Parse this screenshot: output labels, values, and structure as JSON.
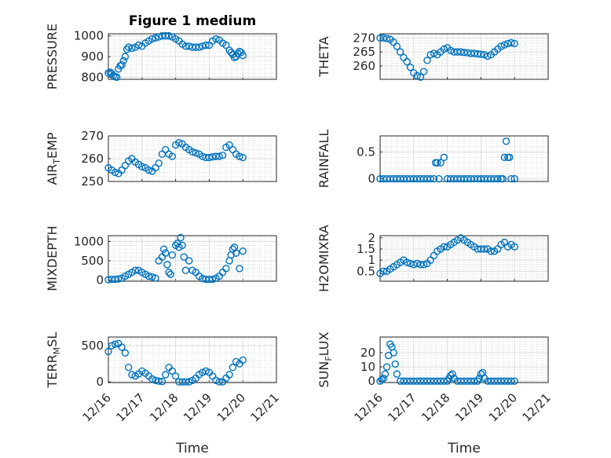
{
  "figure": {
    "title": "Figure 1 medium",
    "marker_color": "#0072BD"
  },
  "chart_data": [
    {
      "type": "scatter",
      "title": "Figure 1 medium",
      "ylabel": "PRESSURE",
      "xlabel": "",
      "xlim": [
        "12/16",
        "12/21"
      ],
      "xticks": [
        "12/16",
        "12/17",
        "12/18",
        "12/19",
        "12/20",
        "12/21"
      ],
      "ylim": [
        790,
        1010
      ],
      "yticks": [
        800,
        900,
        1000
      ],
      "series": [
        {
          "x": [
            0.0,
            0.05,
            0.1,
            0.15,
            0.2,
            0.25,
            0.3,
            0.35,
            0.4,
            0.45,
            0.5,
            0.55,
            0.6,
            0.7,
            0.8,
            0.9,
            1.0,
            1.1,
            1.2,
            1.3,
            1.4,
            1.5,
            1.6,
            1.7,
            1.8,
            1.9,
            2.0,
            2.1,
            2.2,
            2.3,
            2.4,
            2.5,
            2.6,
            2.7,
            2.8,
            2.9,
            3.0,
            3.1,
            3.2,
            3.3,
            3.4,
            3.5,
            3.6,
            3.65,
            3.7,
            3.75,
            3.8,
            3.85,
            3.9,
            3.95,
            4.0
          ],
          "y": [
            820,
            825,
            818,
            808,
            802,
            800,
            840,
            855,
            860,
            880,
            900,
            935,
            945,
            940,
            945,
            955,
            950,
            965,
            975,
            985,
            990,
            995,
            1000,
            1000,
            1000,
            995,
            985,
            975,
            960,
            950,
            950,
            945,
            945,
            945,
            950,
            955,
            955,
            975,
            985,
            980,
            965,
            955,
            930,
            920,
            910,
            895,
            900,
            915,
            925,
            920,
            905
          ]
        }
      ]
    },
    {
      "type": "scatter",
      "ylabel": "THETA",
      "xlabel": "",
      "xlim": [
        "12/16",
        "12/21"
      ],
      "xticks": [
        "12/16",
        "12/17",
        "12/18",
        "12/19",
        "12/20",
        "12/21"
      ],
      "ylim": [
        255.2,
        271.5
      ],
      "yticks": [
        260,
        265,
        270
      ],
      "series": [
        {
          "x": [
            0.0,
            0.1,
            0.2,
            0.3,
            0.4,
            0.5,
            0.6,
            0.7,
            0.8,
            0.9,
            1.0,
            1.1,
            1.2,
            1.3,
            1.4,
            1.5,
            1.6,
            1.7,
            1.8,
            1.9,
            2.0,
            2.1,
            2.2,
            2.3,
            2.4,
            2.5,
            2.6,
            2.7,
            2.8,
            2.9,
            3.0,
            3.1,
            3.2,
            3.3,
            3.4,
            3.5,
            3.6,
            3.7,
            3.8,
            3.9,
            4.0
          ],
          "y": [
            270,
            270,
            269.8,
            269.5,
            268.5,
            267,
            265,
            263,
            261.5,
            259.5,
            257.5,
            256.5,
            256,
            258,
            262,
            264,
            264.5,
            264,
            265,
            266,
            266.5,
            265.5,
            265,
            265,
            265,
            264.8,
            264.7,
            264.5,
            264.5,
            264.3,
            264.2,
            264,
            263.5,
            264,
            265,
            266,
            267,
            267.5,
            268,
            268.3,
            268
          ]
        }
      ]
    },
    {
      "type": "scatter",
      "ylabel": "AIR_TEMP",
      "xlabel": "",
      "xlim": [
        "12/16",
        "12/21"
      ],
      "xticks": [
        "12/16",
        "12/17",
        "12/18",
        "12/19",
        "12/20",
        "12/21"
      ],
      "ylim": [
        250,
        270
      ],
      "yticks": [
        250,
        260,
        270
      ],
      "series": [
        {
          "x": [
            0.0,
            0.1,
            0.2,
            0.3,
            0.4,
            0.5,
            0.6,
            0.7,
            0.8,
            0.9,
            1.0,
            1.1,
            1.2,
            1.3,
            1.4,
            1.5,
            1.6,
            1.7,
            1.8,
            1.9,
            2.0,
            2.1,
            2.2,
            2.3,
            2.4,
            2.5,
            2.6,
            2.7,
            2.8,
            2.9,
            3.0,
            3.1,
            3.2,
            3.3,
            3.4,
            3.5,
            3.6,
            3.7,
            3.8,
            3.9,
            4.0
          ],
          "y": [
            256,
            255,
            254,
            253.5,
            255,
            257,
            259,
            260,
            258.5,
            257.5,
            256.5,
            256,
            255,
            254.5,
            256,
            258,
            262,
            264,
            262,
            261,
            266,
            267,
            266.5,
            265,
            264,
            263,
            262.5,
            262,
            261,
            260.5,
            260.5,
            260.8,
            261,
            261,
            261.5,
            265,
            266,
            264,
            262,
            261,
            260.5
          ]
        }
      ]
    },
    {
      "type": "scatter",
      "ylabel": "RAINFALL",
      "xlabel": "",
      "xlim": [
        "12/16",
        "12/21"
      ],
      "xticks": [
        "12/16",
        "12/17",
        "12/18",
        "12/19",
        "12/20",
        "12/21"
      ],
      "ylim": [
        -0.05,
        0.8
      ],
      "yticks": [
        0,
        0.5
      ],
      "series": [
        {
          "x": [
            0.0,
            0.1,
            0.2,
            0.3,
            0.4,
            0.5,
            0.6,
            0.7,
            0.8,
            0.9,
            1.0,
            1.1,
            1.2,
            1.3,
            1.4,
            1.5,
            1.6,
            1.65,
            1.7,
            1.75,
            1.8,
            1.9,
            2.0,
            2.1,
            2.2,
            2.3,
            2.4,
            2.5,
            2.6,
            2.7,
            2.8,
            2.9,
            3.0,
            3.1,
            3.2,
            3.3,
            3.4,
            3.5,
            3.6,
            3.65,
            3.7,
            3.75,
            3.8,
            3.85,
            3.9,
            4.0
          ],
          "y": [
            0,
            0,
            0,
            0,
            0,
            0,
            0,
            0,
            0,
            0,
            0,
            0,
            0,
            0,
            0,
            0,
            0,
            0.3,
            0.3,
            0,
            0.3,
            0.4,
            0,
            0,
            0,
            0,
            0,
            0,
            0,
            0,
            0,
            0,
            0,
            0,
            0,
            0,
            0,
            0,
            0,
            0,
            0.4,
            0.7,
            0.4,
            0.4,
            0,
            0
          ]
        }
      ]
    },
    {
      "type": "scatter",
      "ylabel": "MIXDEPTH",
      "xlabel": "",
      "xlim": [
        "12/16",
        "12/21"
      ],
      "xticks": [
        "12/16",
        "12/17",
        "12/18",
        "12/19",
        "12/20",
        "12/21"
      ],
      "ylim": [
        -30,
        1150
      ],
      "yticks": [
        0,
        500,
        1000
      ],
      "series": [
        {
          "x": [
            0.0,
            0.1,
            0.2,
            0.3,
            0.4,
            0.5,
            0.6,
            0.7,
            0.8,
            0.9,
            1.0,
            1.1,
            1.2,
            1.3,
            1.4,
            1.5,
            1.6,
            1.65,
            1.7,
            1.75,
            1.8,
            1.85,
            1.9,
            2.0,
            2.05,
            2.1,
            2.15,
            2.2,
            2.25,
            2.3,
            2.4,
            2.5,
            2.6,
            2.7,
            2.8,
            2.9,
            3.0,
            3.1,
            3.2,
            3.3,
            3.4,
            3.5,
            3.6,
            3.65,
            3.7,
            3.75,
            3.8,
            3.9,
            4.0
          ],
          "y": [
            10,
            20,
            20,
            30,
            50,
            100,
            150,
            200,
            250,
            250,
            200,
            150,
            100,
            80,
            50,
            500,
            600,
            800,
            700,
            400,
            200,
            150,
            650,
            900,
            950,
            850,
            1100,
            900,
            600,
            250,
            500,
            250,
            200,
            100,
            40,
            20,
            20,
            20,
            50,
            100,
            200,
            300,
            500,
            650,
            800,
            850,
            700,
            300,
            750
          ]
        }
      ]
    },
    {
      "type": "scatter",
      "ylabel": "H2OMIXRA",
      "xlabel": "",
      "xlim": [
        "12/16",
        "12/21"
      ],
      "xticks": [
        "12/16",
        "12/17",
        "12/18",
        "12/19",
        "12/20",
        "12/21"
      ],
      "ylim": [
        0.05,
        2.1
      ],
      "yticks": [
        0.5,
        1,
        1.5,
        2
      ],
      "series": [
        {
          "x": [
            0.0,
            0.1,
            0.2,
            0.3,
            0.4,
            0.5,
            0.6,
            0.7,
            0.8,
            0.9,
            1.0,
            1.1,
            1.2,
            1.3,
            1.4,
            1.5,
            1.6,
            1.7,
            1.8,
            1.9,
            2.0,
            2.1,
            2.2,
            2.3,
            2.4,
            2.5,
            2.6,
            2.7,
            2.8,
            2.9,
            3.0,
            3.1,
            3.2,
            3.3,
            3.4,
            3.5,
            3.6,
            3.7,
            3.8,
            3.9,
            4.0
          ],
          "y": [
            0.4,
            0.5,
            0.5,
            0.6,
            0.7,
            0.8,
            0.9,
            1.0,
            0.9,
            0.85,
            0.8,
            0.85,
            0.8,
            0.8,
            0.85,
            1.0,
            1.2,
            1.4,
            1.5,
            1.6,
            1.6,
            1.7,
            1.8,
            1.9,
            2.0,
            1.9,
            1.8,
            1.7,
            1.6,
            1.5,
            1.5,
            1.5,
            1.5,
            1.4,
            1.4,
            1.5,
            1.7,
            1.8,
            1.6,
            1.7,
            1.6
          ]
        }
      ]
    },
    {
      "type": "scatter",
      "ylabel": "TERR_MSL",
      "xlabel": "Time",
      "xlim": [
        "12/16",
        "12/21"
      ],
      "xticks": [
        "12/16",
        "12/17",
        "12/18",
        "12/19",
        "12/20",
        "12/21"
      ],
      "ylim": [
        -10,
        620
      ],
      "yticks": [
        0,
        500
      ],
      "series": [
        {
          "x": [
            0.0,
            0.1,
            0.2,
            0.3,
            0.4,
            0.5,
            0.6,
            0.7,
            0.8,
            0.9,
            1.0,
            1.1,
            1.2,
            1.3,
            1.4,
            1.5,
            1.6,
            1.7,
            1.8,
            1.9,
            2.0,
            2.1,
            2.2,
            2.3,
            2.4,
            2.5,
            2.6,
            2.7,
            2.8,
            2.9,
            3.0,
            3.1,
            3.2,
            3.3,
            3.4,
            3.5,
            3.6,
            3.7,
            3.8,
            3.9,
            4.0
          ],
          "y": [
            420,
            500,
            520,
            530,
            480,
            400,
            200,
            100,
            80,
            110,
            150,
            120,
            80,
            40,
            20,
            10,
            5,
            100,
            200,
            150,
            80,
            0,
            0,
            0,
            0,
            20,
            50,
            100,
            130,
            150,
            130,
            80,
            20,
            0,
            0,
            50,
            100,
            200,
            280,
            250,
            300
          ]
        }
      ]
    },
    {
      "type": "scatter",
      "ylabel": "SUN_FLUX",
      "xlabel": "Time",
      "xlim": [
        "12/16",
        "12/21"
      ],
      "xticks": [
        "12/16",
        "12/17",
        "12/18",
        "12/19",
        "12/20",
        "12/21"
      ],
      "ylim": [
        -1,
        31
      ],
      "yticks": [
        0,
        10,
        20
      ],
      "series": [
        {
          "x": [
            0.0,
            0.05,
            0.1,
            0.15,
            0.2,
            0.25,
            0.3,
            0.35,
            0.4,
            0.45,
            0.5,
            0.6,
            0.7,
            0.8,
            0.9,
            1.0,
            1.1,
            1.2,
            1.3,
            1.4,
            1.5,
            1.6,
            1.7,
            1.8,
            1.9,
            2.0,
            2.05,
            2.1,
            2.15,
            2.2,
            2.3,
            2.4,
            2.5,
            2.6,
            2.7,
            2.8,
            2.9,
            2.95,
            3.0,
            3.05,
            3.1,
            3.2,
            3.3,
            3.4,
            3.5,
            3.6,
            3.7,
            3.8,
            3.9,
            4.0
          ],
          "y": [
            0,
            1,
            2,
            5,
            10,
            18,
            26,
            24,
            20,
            12,
            5,
            0,
            0,
            0,
            0,
            0,
            0,
            0,
            0,
            0,
            0,
            0,
            0,
            0,
            0,
            0,
            2,
            4,
            5,
            2,
            0,
            0,
            0,
            0,
            0,
            0,
            0,
            2,
            5,
            6,
            2,
            0,
            0,
            0,
            0,
            0,
            0,
            0,
            0,
            0
          ]
        }
      ]
    }
  ]
}
